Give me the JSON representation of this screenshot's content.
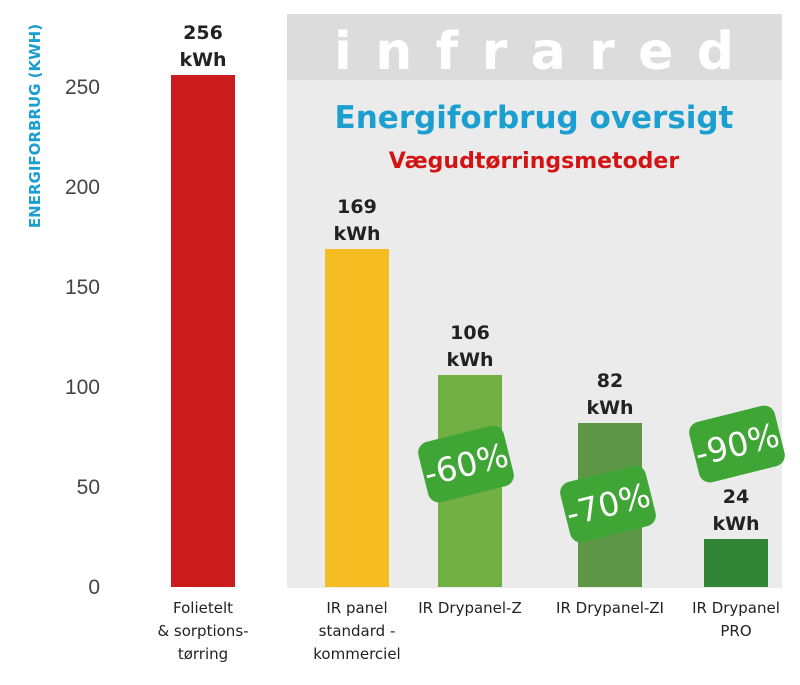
{
  "banner": {
    "watermark": "infrared",
    "title": "Energiforbrug oversigt",
    "subtitle": "Vægudtørringsmetoder"
  },
  "colors": {
    "panel_bg": "#ebebeb",
    "banner_bg": "#dcdcdc",
    "title": "#1a9fd0",
    "subtitle": "#d41414",
    "ylabel": "#1a9fd0",
    "badge": "#3fa535"
  },
  "chart_data": {
    "type": "bar",
    "ylabel": "ENERGIFORBRUG (KWH)",
    "ylim": [
      0,
      275
    ],
    "yticks": [
      "0",
      "50",
      "100",
      "150",
      "200",
      "250"
    ],
    "grid": false,
    "categories": [
      [
        "Folietelt",
        "& sorptions-",
        "tørring"
      ],
      [
        "IR panel",
        "standard -",
        "kommerciel"
      ],
      [
        "IR Drypanel-Z"
      ],
      [
        "IR Drypanel-ZI"
      ],
      [
        "IR Drypanel",
        "PRO"
      ]
    ],
    "values": [
      256,
      169,
      106,
      82,
      24
    ],
    "value_labels": [
      [
        "256",
        "kWh"
      ],
      [
        "169",
        "kWh"
      ],
      [
        "106",
        "kWh"
      ],
      [
        "82",
        "kWh"
      ],
      [
        "24",
        "kWh"
      ]
    ],
    "bar_colors": [
      "#cc1c1e",
      "#f6bd22",
      "#72b043",
      "#5e9647",
      "#2f8535"
    ],
    "badges": [
      "",
      "",
      "-60%",
      "-70%",
      "-90%"
    ]
  }
}
